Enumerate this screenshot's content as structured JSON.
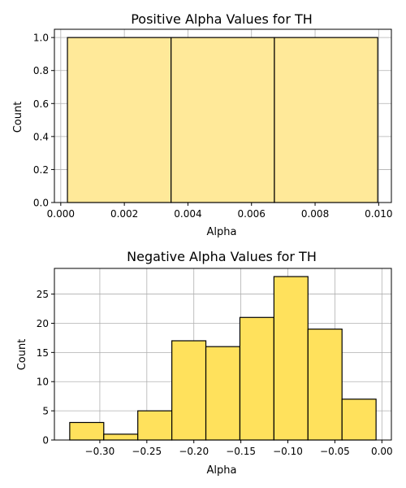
{
  "chart_data": [
    {
      "type": "bar",
      "title": "Positive Alpha Values for TH",
      "xlabel": "Alpha",
      "ylabel": "Count",
      "bin_edges": [
        0.00021,
        0.00347,
        0.00672,
        0.00997
      ],
      "values": [
        1,
        1,
        1
      ],
      "xlim": [
        -0.0002,
        0.0104
      ],
      "ylim": [
        0,
        1.05
      ],
      "xticks": [
        0.0,
        0.002,
        0.004,
        0.006,
        0.008,
        0.01
      ],
      "xtick_labels": [
        "0.000",
        "0.002",
        "0.004",
        "0.006",
        "0.008",
        "0.010"
      ],
      "yticks": [
        0,
        0.2,
        0.4,
        0.6,
        0.8,
        1.0
      ],
      "ytick_labels": [
        "0.0",
        "0.2",
        "0.4",
        "0.6",
        "0.8",
        "1.0"
      ],
      "grid": true,
      "bar_color": "#ffe999",
      "edge_color": "#000000"
    },
    {
      "type": "bar",
      "title": "Negative Alpha Values for TH",
      "xlabel": "Alpha",
      "ylabel": "Count",
      "bin_edges": [
        -0.332,
        -0.2958,
        -0.2596,
        -0.2234,
        -0.1872,
        -0.151,
        -0.1148,
        -0.0786,
        -0.0424,
        -0.0062
      ],
      "values": [
        3,
        1,
        5,
        17,
        16,
        21,
        28,
        19,
        7
      ],
      "xlim": [
        -0.3483,
        0.0101
      ],
      "ylim": [
        0,
        29.4
      ],
      "xticks": [
        -0.3,
        -0.25,
        -0.2,
        -0.15,
        -0.1,
        -0.05,
        0.0
      ],
      "xtick_labels": [
        "−0.30",
        "−0.25",
        "−0.20",
        "−0.15",
        "−0.10",
        "−0.05",
        "0.00"
      ],
      "yticks": [
        0,
        5,
        10,
        15,
        20,
        25
      ],
      "ytick_labels": [
        "0",
        "5",
        "10",
        "15",
        "20",
        "25"
      ],
      "grid": true,
      "bar_color": "#ffe15c",
      "edge_color": "#000000"
    }
  ]
}
